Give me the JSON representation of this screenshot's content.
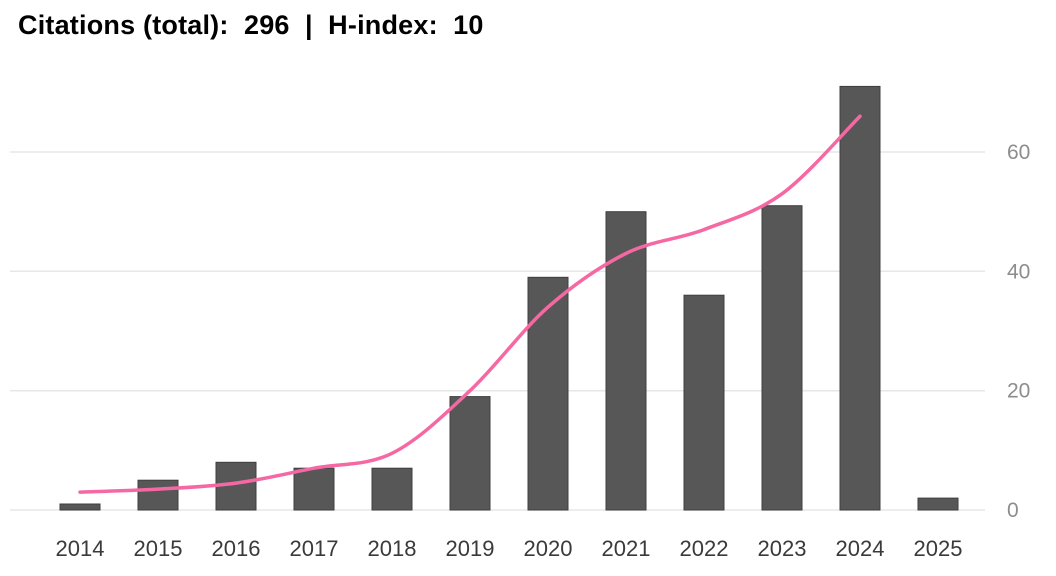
{
  "header": {
    "title": "Citations (total):  296  |  H-index:  10",
    "citations_total": "296",
    "h_index": "10"
  },
  "chart_data": {
    "type": "bar",
    "title": "Citations (total):  296  |  H-index:  10",
    "categories": [
      "2014",
      "2015",
      "2016",
      "2017",
      "2018",
      "2019",
      "2020",
      "2021",
      "2022",
      "2023",
      "2024",
      "2025"
    ],
    "values": [
      1,
      5,
      8,
      7,
      7,
      19,
      39,
      50,
      36,
      51,
      71,
      2
    ],
    "series": [
      {
        "name": "citations-per-year-bars",
        "type": "bar",
        "values": [
          1,
          5,
          8,
          7,
          7,
          19,
          39,
          50,
          36,
          51,
          71,
          2
        ],
        "color": "#575757"
      },
      {
        "name": "smoothed-trend-line",
        "type": "line",
        "categories": [
          "2014",
          "2015",
          "2016",
          "2017",
          "2018",
          "2019",
          "2020",
          "2021",
          "2022",
          "2023",
          "2024"
        ],
        "values": [
          3,
          3.5,
          4.5,
          7,
          9.5,
          20,
          34,
          43,
          47,
          53,
          66
        ],
        "color": "#f568a4"
      }
    ],
    "xlabel": "",
    "ylabel": "",
    "ylim": [
      0,
      75
    ],
    "y_ticks": [
      0,
      20,
      40,
      60
    ],
    "y_axis_side": "right",
    "grid": true,
    "legend": "none",
    "bar_color": "#575757",
    "grid_color": "#e7e7e7"
  }
}
